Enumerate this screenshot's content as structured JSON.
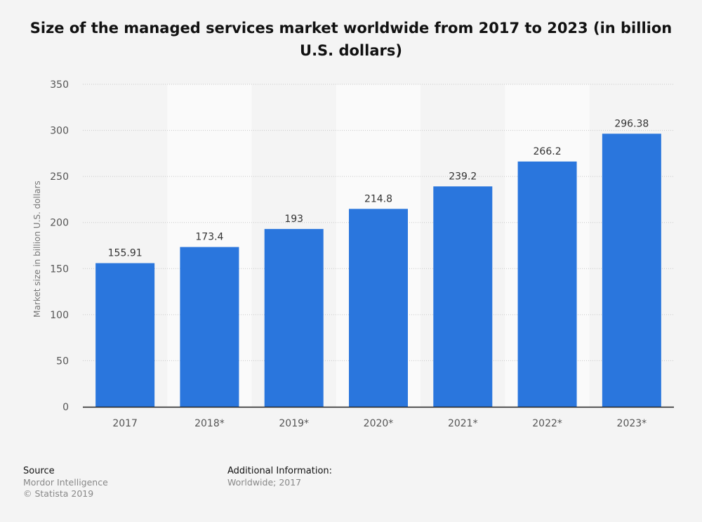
{
  "chart_data": {
    "type": "bar",
    "title": "Size of the managed services market worldwide from 2017 to 2023 (in billion U.S. dollars)",
    "xlabel": "",
    "ylabel": "Market size in billion U.S. dollars",
    "categories": [
      "2017",
      "2018*",
      "2019*",
      "2020*",
      "2021*",
      "2022*",
      "2023*"
    ],
    "values": [
      155.91,
      173.4,
      193,
      214.8,
      239.2,
      266.2,
      296.38
    ],
    "value_labels": [
      "155.91",
      "173.4",
      "193",
      "214.8",
      "239.2",
      "266.2",
      "296.38"
    ],
    "ylim": [
      0,
      350
    ],
    "yticks": [
      0,
      50,
      100,
      150,
      200,
      250,
      300,
      350
    ],
    "grid": true,
    "bar_color": "#2a76dd"
  },
  "footer": {
    "source_heading": "Source",
    "source": "Mordor Intelligence",
    "copyright": "© Statista 2019",
    "info_heading": "Additional Information:",
    "info": "Worldwide; 2017"
  }
}
